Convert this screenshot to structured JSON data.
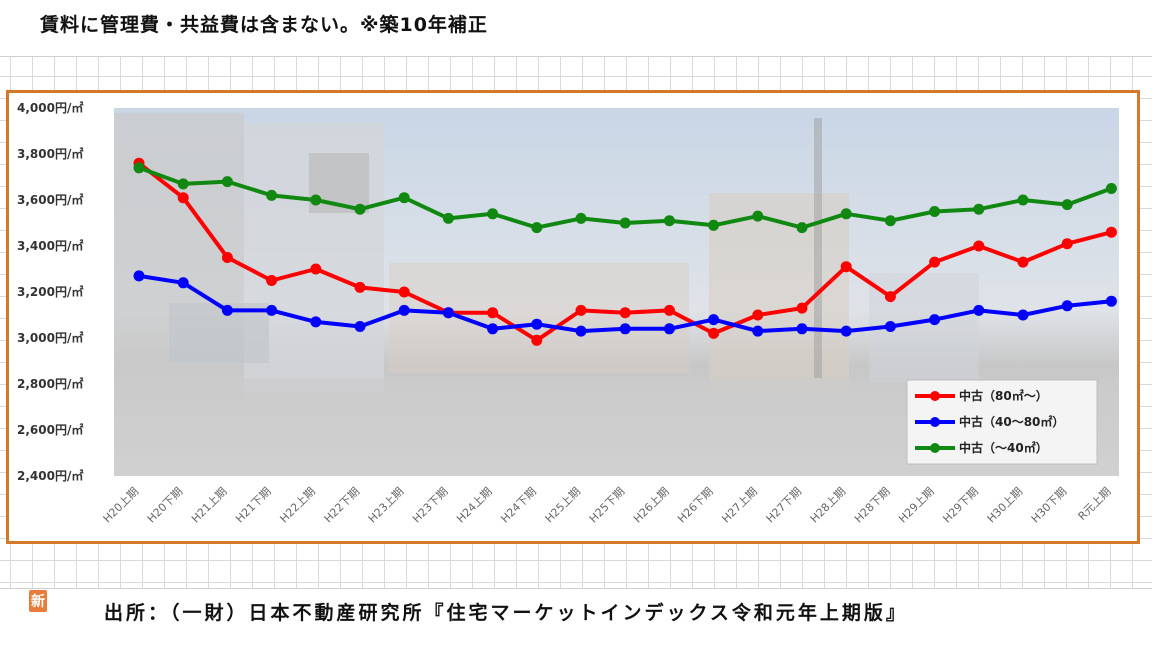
{
  "heading": "賃料に管理費・共益費は含まない。※築10年補正",
  "source": "出所：（一財）日本不動産研究所『住宅マーケットインデックス令和元年上期版』",
  "logo_char": "新",
  "colors": {
    "frame": "#d4782a",
    "series_red": "#ff0000",
    "series_blue": "#0000ff",
    "series_green": "#118811"
  },
  "chart_data": {
    "type": "line",
    "ylim": [
      2400,
      4000
    ],
    "yticks": [
      2400,
      2600,
      2800,
      3000,
      3200,
      3400,
      3600,
      3800,
      4000
    ],
    "ytick_labels": [
      "2,400円/㎡",
      "2,600円/㎡",
      "2,800円/㎡",
      "3,000円/㎡",
      "3,200円/㎡",
      "3,400円/㎡",
      "3,600円/㎡",
      "3,800円/㎡",
      "4,000円/㎡"
    ],
    "categories": [
      "H20上期",
      "H20下期",
      "H21上期",
      "H21下期",
      "H22上期",
      "H22下期",
      "H23上期",
      "H23下期",
      "H24上期",
      "H24下期",
      "H25上期",
      "H25下期",
      "H26上期",
      "H26下期",
      "H27上期",
      "H27下期",
      "H28上期",
      "H28下期",
      "H29上期",
      "H29下期",
      "H30上期",
      "H30下期",
      "R元上期"
    ],
    "legend_position": "bottom-right",
    "series": [
      {
        "name": "中古（80㎡～）",
        "color": "#ff0000",
        "values": [
          3760,
          3610,
          3350,
          3250,
          3300,
          3220,
          3200,
          3110,
          3110,
          2990,
          3120,
          3110,
          3120,
          3020,
          3100,
          3130,
          3310,
          3180,
          3330,
          3400,
          3330,
          3410,
          3460
        ]
      },
      {
        "name": "中古（40～80㎡）",
        "color": "#0000ff",
        "values": [
          3270,
          3240,
          3120,
          3120,
          3070,
          3050,
          3120,
          3110,
          3040,
          3060,
          3030,
          3040,
          3040,
          3080,
          3030,
          3040,
          3030,
          3050,
          3080,
          3120,
          3100,
          3140,
          3160
        ]
      },
      {
        "name": "中古（～40㎡）",
        "color": "#118811",
        "values": [
          3740,
          3670,
          3680,
          3620,
          3600,
          3560,
          3610,
          3520,
          3540,
          3480,
          3520,
          3500,
          3510,
          3490,
          3530,
          3480,
          3540,
          3510,
          3550,
          3560,
          3600,
          3580,
          3650
        ]
      }
    ]
  }
}
